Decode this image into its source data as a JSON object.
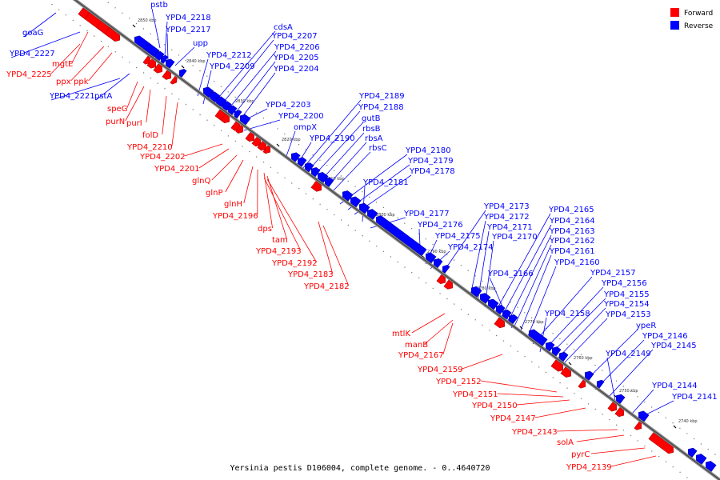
{
  "legend": {
    "forward": {
      "label": "Forward",
      "color": "#ff0000"
    },
    "reverse": {
      "label": "Reverse",
      "color": "#0000ff"
    }
  },
  "caption": "Yersinia pestis D106004, complete genome. - 0..4640720",
  "ticks": [
    "2850 kbp",
    "2840 kbp",
    "2830 kbp",
    "2820 kbp",
    "2810 kbp",
    "2800 kbp",
    "2790 kbp",
    "2780 kbp",
    "2770 kbp",
    "2760 kbp",
    "2750 kbp",
    "2740 kbp"
  ],
  "blue_labels": [
    "pstb",
    "YPD4_2218",
    "YPD4_2217",
    "upp",
    "goaG",
    "YPD4_2227",
    "YPD4_2212",
    "YPD4_2209",
    "cdsA",
    "YPD4_2207",
    "YPD4_2206",
    "YPD4_2205",
    "YPD4_2204",
    "YPD4_2221",
    "pstA",
    "YPD4_2203",
    "YPD4_2200",
    "ompX",
    "YPD4_2190",
    "YPD4_2189",
    "YPD4_2188",
    "gutB",
    "rbsB",
    "rbsA",
    "rbsC",
    "YPD4_2180",
    "YPD4_2179",
    "YPD4_2178",
    "YPD4_2181",
    "YPD4_2177",
    "YPD4_2176",
    "YPD4_2175",
    "YPD4_2174",
    "YPD4_2173",
    "YPD4_2172",
    "YPD4_2171",
    "YPD4_2170",
    "YPD4_2165",
    "YPD4_2164",
    "YPD4_2163",
    "YPD4_2162",
    "YPD4_2161",
    "YPD4_2160",
    "YPD4_2166",
    "YPD4_2157",
    "YPD4_2156",
    "YPD4_2155",
    "YPD4_2154",
    "YPD4_2153",
    "YPD4_2158",
    "ypeR",
    "YPD4_2146",
    "YPD4_2145",
    "YPD4_2149",
    "YPD4_2144",
    "YPD4_2141"
  ],
  "red_labels": [
    "mgtE",
    "YPD4_2225",
    "ppx",
    "ppk",
    "speG",
    "purN",
    "purI",
    "folD",
    "YPD4_2210",
    "YPD4_2202",
    "YPD4_2201",
    "glnQ",
    "glnP",
    "glnH",
    "YPD4_2196",
    "dps",
    "tam",
    "YPD4_2193",
    "YPD4_2192",
    "YPD4_2183",
    "YPD4_2182",
    "mtlK",
    "manB",
    "YPD4_2167",
    "YPD4_2159",
    "YPD4_2152",
    "YPD4_2151",
    "YPD4_2150",
    "YPD4_2147",
    "YPD4_2143",
    "solA",
    "pyrC",
    "YPD4_2139"
  ]
}
